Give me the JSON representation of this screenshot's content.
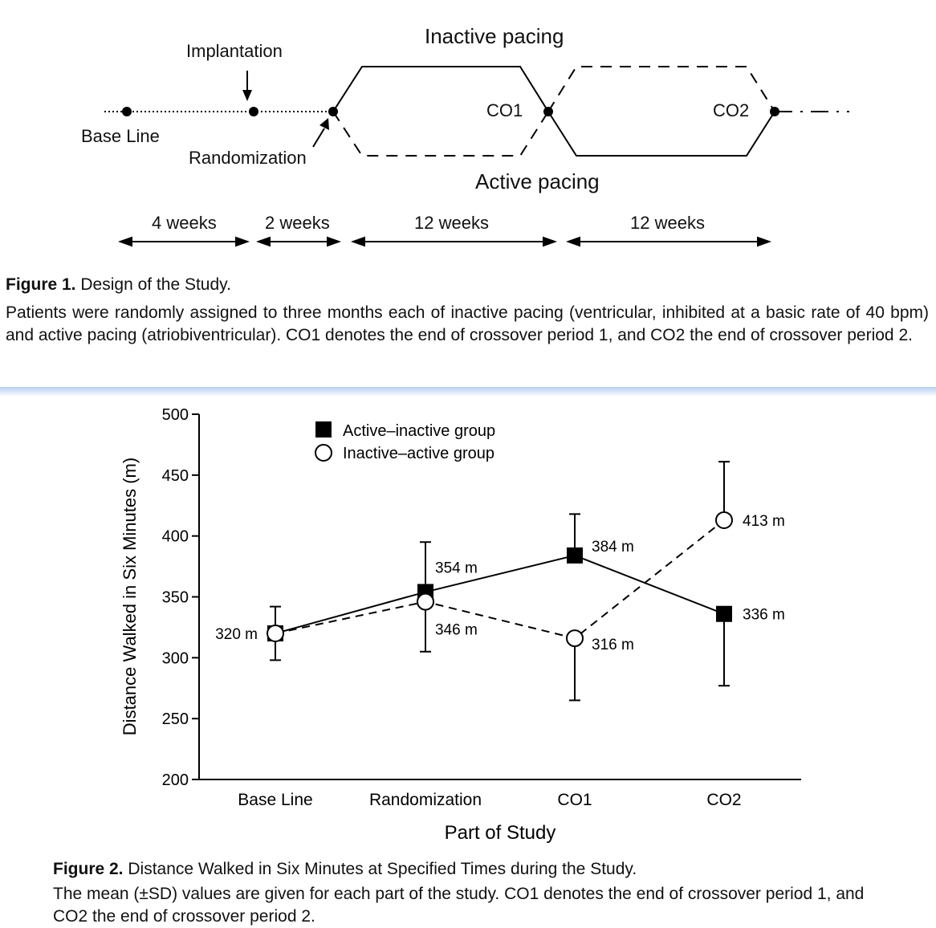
{
  "figure1": {
    "labels": {
      "implantation": "Implantation",
      "base_line": "Base Line",
      "randomization": "Randomization",
      "inactive_pacing": "Inactive pacing",
      "active_pacing": "Active pacing",
      "co1": "CO1",
      "co2": "CO2"
    },
    "durations": [
      "4 weeks",
      "2 weeks",
      "12 weeks",
      "12 weeks"
    ],
    "caption_title": "Figure 1.",
    "caption_subtitle": "Design of the Study.",
    "caption_body": "Patients were randomly assigned to three months each of inactive pacing (ventricular, inhibited at a basic rate of 40 bpm) and active pacing (atriobiventricular). CO1 denotes the end of crossover period 1, and CO2 the end of crossover period 2."
  },
  "figure2": {
    "caption_title": "Figure 2.",
    "caption_subtitle": "Distance Walked in Six Minutes at Specified Times during the Study.",
    "caption_body": "The mean (±SD) values are given for each part of the study. CO1 denotes the end of crossover period 1, and CO2 the end of crossover period 2."
  },
  "chart_data": {
    "type": "line",
    "categories": [
      "Base Line",
      "Randomization",
      "CO1",
      "CO2"
    ],
    "xlabel": "Part of Study",
    "ylabel": "Distance Walked in Six Minutes (m)",
    "ylim": [
      200,
      500
    ],
    "yticks": [
      200,
      250,
      300,
      350,
      400,
      450,
      500
    ],
    "grid": false,
    "legend_position": "top-left",
    "series": [
      {
        "name": "Active–inactive group",
        "marker": "filled-square",
        "line": "solid",
        "color": "#000000",
        "values": [
          320,
          354,
          384,
          336
        ],
        "err_low": [
          22,
          49,
          0,
          59
        ],
        "err_high": [
          22,
          41,
          34,
          0
        ],
        "labels": [
          "",
          "354 m",
          "384 m",
          "336 m"
        ]
      },
      {
        "name": "Inactive–active group",
        "marker": "open-circle",
        "line": "dashed",
        "color": "#000000",
        "values": [
          320,
          346,
          316,
          413
        ],
        "err_low": [
          0,
          0,
          51,
          0
        ],
        "err_high": [
          0,
          0,
          0,
          48
        ],
        "labels": [
          "320 m",
          "346 m",
          "316 m",
          "413 m"
        ]
      }
    ]
  }
}
